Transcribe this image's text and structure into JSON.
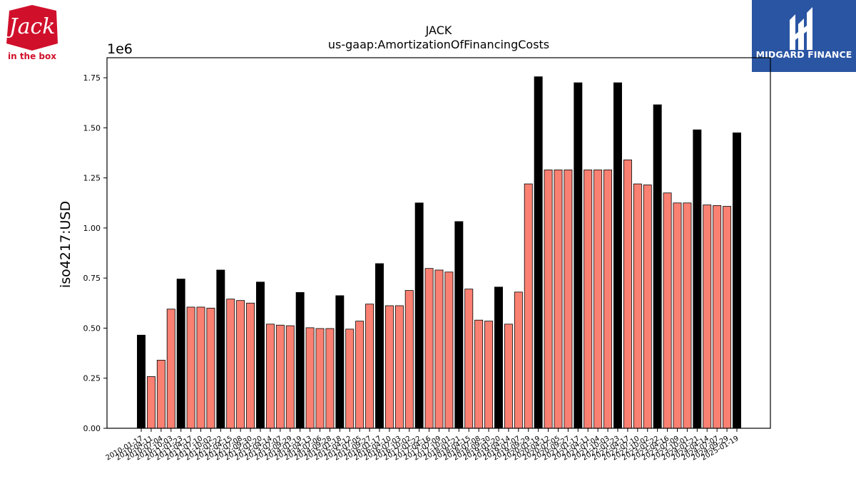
{
  "brand_left": {
    "logo": "jack-in-the-box-logo",
    "name": "Jack",
    "tagline": "in the box",
    "color": "#d0102b"
  },
  "brand_right": {
    "logo": "midgard-finance-logo",
    "name": "MIDGARD FINANCE",
    "color": "#2a55a3"
  },
  "chart_data": {
    "type": "bar",
    "title": "JACK",
    "subtitle": "us-gaap:AmortizationOfFinancingCosts",
    "ylabel": "iso4217:USD",
    "xlabel": "",
    "y_offset_text": "1e6",
    "ylim": [
      0,
      1850000
    ],
    "y_ticks": [
      {
        "value": 0,
        "label": "0.00"
      },
      {
        "value": 250000,
        "label": "0.25"
      },
      {
        "value": 500000,
        "label": "0.50"
      },
      {
        "value": 750000,
        "label": "0.75"
      },
      {
        "value": 1000000,
        "label": "1.00"
      },
      {
        "value": 1250000,
        "label": "1.25"
      },
      {
        "value": 1500000,
        "label": "1.50"
      },
      {
        "value": 1750000,
        "label": "1.75"
      }
    ],
    "colors": {
      "annual": "#000000",
      "quarterly": "#fa8072",
      "edge": "#000000"
    },
    "grid": false,
    "categories": [
      "2010-01-17",
      "2010-04-11",
      "2010-07-04",
      "2010-10-03",
      "2011-01-23",
      "2011-04-17",
      "2011-07-10",
      "2011-10-02",
      "2012-01-22",
      "2012-04-15",
      "2012-07-08",
      "2012-09-30",
      "2013-01-20",
      "2013-04-14",
      "2013-07-07",
      "2013-09-29",
      "2014-01-19",
      "2014-04-13",
      "2014-07-06",
      "2014-09-28",
      "2015-01-18",
      "2015-04-12",
      "2015-07-05",
      "2015-09-27",
      "2016-01-17",
      "2016-04-10",
      "2016-07-03",
      "2016-10-02",
      "2017-01-22",
      "2017-04-16",
      "2017-07-09",
      "2017-10-01",
      "2018-01-21",
      "2018-04-15",
      "2018-07-08",
      "2018-09-30",
      "2019-01-20",
      "2019-04-14",
      "2019-07-07",
      "2019-09-29",
      "2020-01-19",
      "2020-04-12",
      "2020-07-05",
      "2020-09-27",
      "2021-01-17",
      "2021-04-11",
      "2021-07-04",
      "2021-10-03",
      "2022-01-23",
      "2022-04-17",
      "2022-07-10",
      "2022-10-02",
      "2023-01-22",
      "2023-04-16",
      "2023-07-09",
      "2023-10-01",
      "2024-01-21",
      "2024-04-14",
      "2024-07-07",
      "2024-09-29",
      "2025-01-19"
    ],
    "values": [
      465000,
      258000,
      340000,
      595000,
      745000,
      605000,
      605000,
      600000,
      790000,
      645000,
      638000,
      625000,
      730000,
      520000,
      515000,
      512000,
      678000,
      502000,
      498000,
      498000,
      662000,
      495000,
      535000,
      620000,
      822000,
      612000,
      612000,
      688000,
      1125000,
      798000,
      790000,
      780000,
      1032000,
      695000,
      540000,
      535000,
      705000,
      520000,
      680000,
      1220000,
      1755000,
      1290000,
      1290000,
      1290000,
      1725000,
      1290000,
      1290000,
      1290000,
      1725000,
      1340000,
      1220000,
      1215000,
      1615000,
      1175000,
      1125000,
      1125000,
      1490000,
      1115000,
      1112000,
      1108000,
      1475000
    ],
    "series_kind": [
      "A",
      "Q",
      "Q",
      "Q",
      "A",
      "Q",
      "Q",
      "Q",
      "A",
      "Q",
      "Q",
      "Q",
      "A",
      "Q",
      "Q",
      "Q",
      "A",
      "Q",
      "Q",
      "Q",
      "A",
      "Q",
      "Q",
      "Q",
      "A",
      "Q",
      "Q",
      "Q",
      "A",
      "Q",
      "Q",
      "Q",
      "A",
      "Q",
      "Q",
      "Q",
      "A",
      "Q",
      "Q",
      "Q",
      "A",
      "Q",
      "Q",
      "Q",
      "A",
      "Q",
      "Q",
      "Q",
      "A",
      "Q",
      "Q",
      "Q",
      "A",
      "Q",
      "Q",
      "Q",
      "A",
      "Q",
      "Q",
      "Q",
      "A"
    ]
  }
}
